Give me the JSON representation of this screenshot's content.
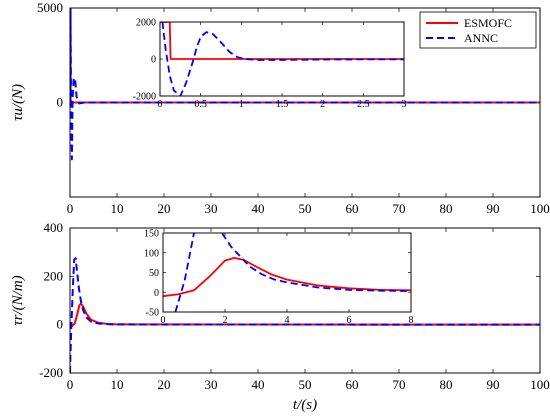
{
  "chart_data": [
    {
      "type": "line",
      "ylabel": "τu/(N)",
      "xlabel": "",
      "xlim": [
        0,
        100
      ],
      "ylim": [
        -5000,
        5000
      ],
      "xticks": [
        0,
        10,
        20,
        30,
        40,
        50,
        60,
        70,
        80,
        90,
        100
      ],
      "yticks": [
        -5000,
        0,
        5000
      ],
      "yticklabels": [
        "",
        "0",
        "5000"
      ],
      "legend": {
        "placement": "top-right",
        "entries": [
          "ESMOFC",
          "ANNC"
        ]
      },
      "series": [
        {
          "name": "ESMOFC",
          "color": "#ff0000",
          "style": "solid",
          "x": [
            0,
            0.05,
            0.12,
            0.14,
            0.2,
            1,
            5,
            100
          ],
          "y": [
            0,
            5000,
            5000,
            0,
            0,
            0,
            0,
            0
          ]
        },
        {
          "name": "ANNC",
          "color": "#0000ff",
          "style": "dashed",
          "x": [
            0,
            0.08,
            0.25,
            0.4,
            0.55,
            0.8,
            1.1,
            1.4,
            2,
            3,
            100
          ],
          "y": [
            0,
            5000,
            -800,
            -3000,
            200,
            1300,
            1200,
            300,
            -50,
            0,
            0
          ]
        }
      ],
      "inset": {
        "xlim": [
          0,
          3
        ],
        "ylim": [
          -2000,
          2000
        ],
        "xticks": [
          0,
          0.5,
          1,
          1.5,
          2,
          2.5,
          3
        ],
        "xticklabels": [
          "0",
          "0.5",
          "1",
          "1.5",
          "2",
          "2.5",
          "3"
        ],
        "yticks": [
          -2000,
          0,
          2000
        ],
        "yticklabels": [
          "-2000",
          "0",
          "2000"
        ],
        "series": [
          {
            "name": "ESMOFC",
            "color": "#ff0000",
            "style": "solid",
            "x": [
              0,
              0.05,
              0.1,
              0.12,
              0.13,
              0.2,
              1,
              2,
              3
            ],
            "y": [
              2000,
              2000,
              2000,
              2000,
              0,
              0,
              0,
              0,
              0
            ]
          },
          {
            "name": "ANNC",
            "color": "#0000ff",
            "style": "dashed",
            "x": [
              0.03,
              0.07,
              0.12,
              0.17,
              0.25,
              0.32,
              0.4,
              0.45,
              0.5,
              0.57,
              0.65,
              0.75,
              0.85,
              0.95,
              1.05,
              1.2,
              1.5,
              2,
              2.5,
              3
            ],
            "y": [
              2000,
              500,
              -900,
              -1700,
              -2000,
              -1300,
              -200,
              600,
              1200,
              1450,
              1350,
              900,
              400,
              100,
              0,
              -50,
              -50,
              -30,
              -20,
              -20
            ]
          }
        ]
      }
    },
    {
      "type": "line",
      "ylabel": "τr/(N/m)",
      "xlabel": "t/(s)",
      "xlim": [
        0,
        100
      ],
      "ylim": [
        -200,
        400
      ],
      "xticks": [
        0,
        10,
        20,
        30,
        40,
        50,
        60,
        70,
        80,
        90,
        100
      ],
      "yticks": [
        -200,
        0,
        200,
        400
      ],
      "yticklabels": [
        "-200",
        "0",
        "200",
        "400"
      ],
      "series": [
        {
          "name": "ESMOFC",
          "color": "#ff0000",
          "style": "solid",
          "x": [
            0,
            0.5,
            1,
            1.5,
            2,
            2.3,
            2.8,
            3.5,
            4.5,
            6,
            8,
            10,
            100
          ],
          "y": [
            -10,
            -5,
            5,
            40,
            80,
            87,
            75,
            45,
            20,
            8,
            3,
            1,
            0
          ]
        },
        {
          "name": "ANNC",
          "color": "#0000ff",
          "style": "dashed",
          "x": [
            0,
            0.1,
            0.3,
            0.6,
            0.9,
            1.2,
            1.5,
            1.9,
            2.3,
            2.8,
            3.5,
            4.5,
            6,
            8,
            10,
            100
          ],
          "y": [
            -200,
            -120,
            0,
            150,
            270,
            275,
            220,
            150,
            100,
            60,
            30,
            12,
            5,
            2,
            1,
            0
          ]
        }
      ],
      "inset": {
        "xlim": [
          0,
          8
        ],
        "ylim": [
          -50,
          150
        ],
        "xticks": [
          0,
          2,
          4,
          6,
          8
        ],
        "xticklabels": [
          "0",
          "2",
          "4",
          "6",
          "8"
        ],
        "yticks": [
          -50,
          0,
          50,
          100,
          150
        ],
        "yticklabels": [
          "-50",
          "0",
          "50",
          "100",
          "150"
        ],
        "series": [
          {
            "name": "ESMOFC",
            "color": "#ff0000",
            "style": "solid",
            "x": [
              0,
              0.5,
              1,
              1.5,
              2,
              2.3,
              2.6,
              3,
              3.5,
              4,
              5,
              6,
              7,
              8
            ],
            "y": [
              -10,
              -5,
              5,
              40,
              80,
              87,
              82,
              65,
              45,
              32,
              17,
              10,
              6,
              5
            ]
          },
          {
            "name": "ANNC",
            "color": "#0000ff",
            "style": "dashed",
            "x": [
              0.4,
              0.7,
              1.0,
              1.3,
              1.6,
              1.9,
              2.2,
              2.5,
              2.8,
              3.2,
              3.6,
              4,
              5,
              6,
              7,
              8
            ],
            "y": [
              -50,
              30,
              150,
              180,
              180,
              150,
              115,
              90,
              65,
              45,
              32,
              25,
              12,
              6,
              4,
              3
            ]
          }
        ]
      }
    }
  ]
}
